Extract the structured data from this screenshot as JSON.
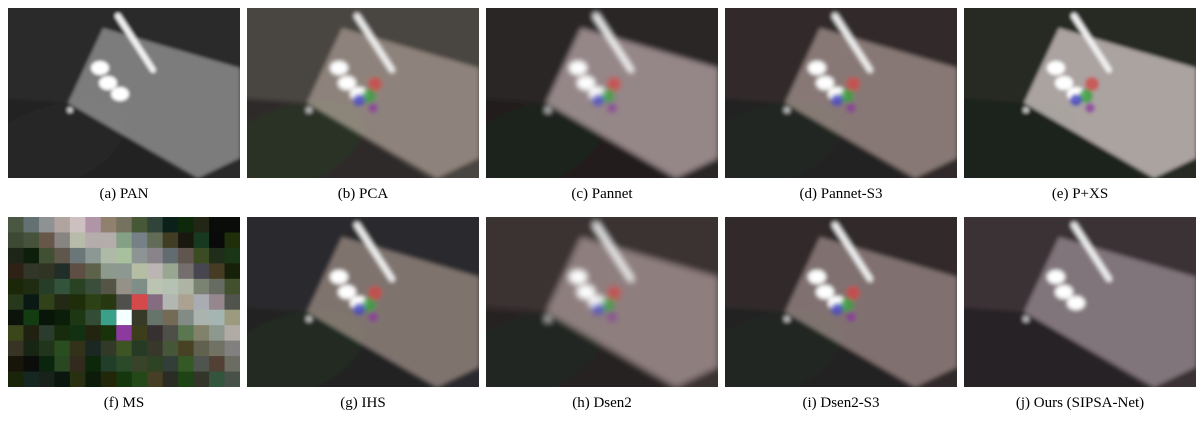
{
  "panels": [
    {
      "caption": "(a) PAN"
    },
    {
      "caption": "(b) PCA"
    },
    {
      "caption": "(c) Pannet"
    },
    {
      "caption": "(d) Pannet-S3"
    },
    {
      "caption": "(e) P+XS"
    },
    {
      "caption": "(f) MS"
    },
    {
      "caption": "(g) IHS"
    },
    {
      "caption": "(h) Dsen2"
    },
    {
      "caption": "(i) Dsen2-S3"
    },
    {
      "caption": "(j) Ours (SIPSA-Net)"
    }
  ]
}
